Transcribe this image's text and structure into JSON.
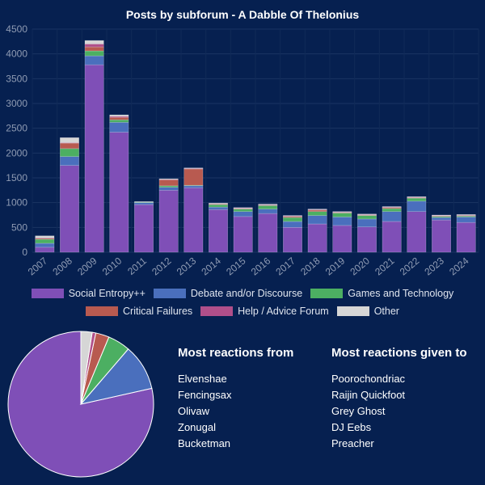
{
  "chart_data": [
    {
      "type": "bar",
      "stacked": true,
      "title": "Posts by subforum - A Dabble Of Thelonius",
      "categories": [
        "2007",
        "2008",
        "2009",
        "2010",
        "2011",
        "2012",
        "2013",
        "2014",
        "2015",
        "2016",
        "2017",
        "2018",
        "2019",
        "2020",
        "2021",
        "2022",
        "2023",
        "2024"
      ],
      "ylim": [
        0,
        4500
      ],
      "yticks": [
        "0",
        "500",
        "1000",
        "1500",
        "2000",
        "2500",
        "3000",
        "3500",
        "4000",
        "4500"
      ],
      "series": [
        {
          "name": "Social Entropy++",
          "color": "#7f4fb7",
          "values": [
            100,
            1750,
            3780,
            2420,
            960,
            1250,
            1300,
            860,
            720,
            780,
            500,
            570,
            540,
            510,
            620,
            820,
            650,
            600
          ]
        },
        {
          "name": "Debate and/or Discourse",
          "color": "#4a6fbd",
          "values": [
            80,
            180,
            180,
            200,
            40,
            60,
            40,
            50,
            100,
            90,
            120,
            170,
            170,
            160,
            200,
            210,
            50,
            110
          ]
        },
        {
          "name": "Games and Technology",
          "color": "#4caf62",
          "values": [
            80,
            160,
            100,
            50,
            10,
            30,
            10,
            50,
            50,
            70,
            80,
            80,
            80,
            70,
            60,
            60,
            20,
            20
          ]
        },
        {
          "name": "Critical Failures",
          "color": "#b85a50",
          "values": [
            20,
            110,
            80,
            50,
            0,
            120,
            330,
            10,
            10,
            10,
            20,
            30,
            10,
            10,
            20,
            10,
            10,
            10
          ]
        },
        {
          "name": "Help / Advice Forum",
          "color": "#b04f8a",
          "values": [
            10,
            10,
            60,
            20,
            0,
            10,
            10,
            10,
            10,
            10,
            10,
            10,
            10,
            10,
            10,
            10,
            10,
            10
          ]
        },
        {
          "name": "Other",
          "color": "#d6d6d6",
          "values": [
            40,
            100,
            70,
            30,
            10,
            10,
            10,
            10,
            10,
            10,
            10,
            10,
            10,
            10,
            10,
            10,
            10,
            10
          ]
        }
      ]
    },
    {
      "type": "pie",
      "labels": [
        "Social Entropy++",
        "Debate and/or Discourse",
        "Games and Technology",
        "Critical Failures",
        "Help / Advice Forum",
        "Other"
      ],
      "values": [
        78.5,
        10.2,
        5.0,
        3.0,
        0.8,
        2.5
      ],
      "colors": [
        "#7f4fb7",
        "#4a6fbd",
        "#4caf62",
        "#b85a50",
        "#b04f8a",
        "#d6d6d6"
      ]
    }
  ],
  "lists": {
    "from": {
      "title": "Most reactions from",
      "items": [
        "Elvenshae",
        "Fencingsax",
        "Olivaw",
        "Zonugal",
        "Bucketman"
      ]
    },
    "given": {
      "title": "Most reactions given to",
      "items": [
        "Poorochondriac",
        "Raijin Quickfoot",
        "Grey Ghost",
        "DJ Eebs",
        "Preacher"
      ]
    }
  }
}
